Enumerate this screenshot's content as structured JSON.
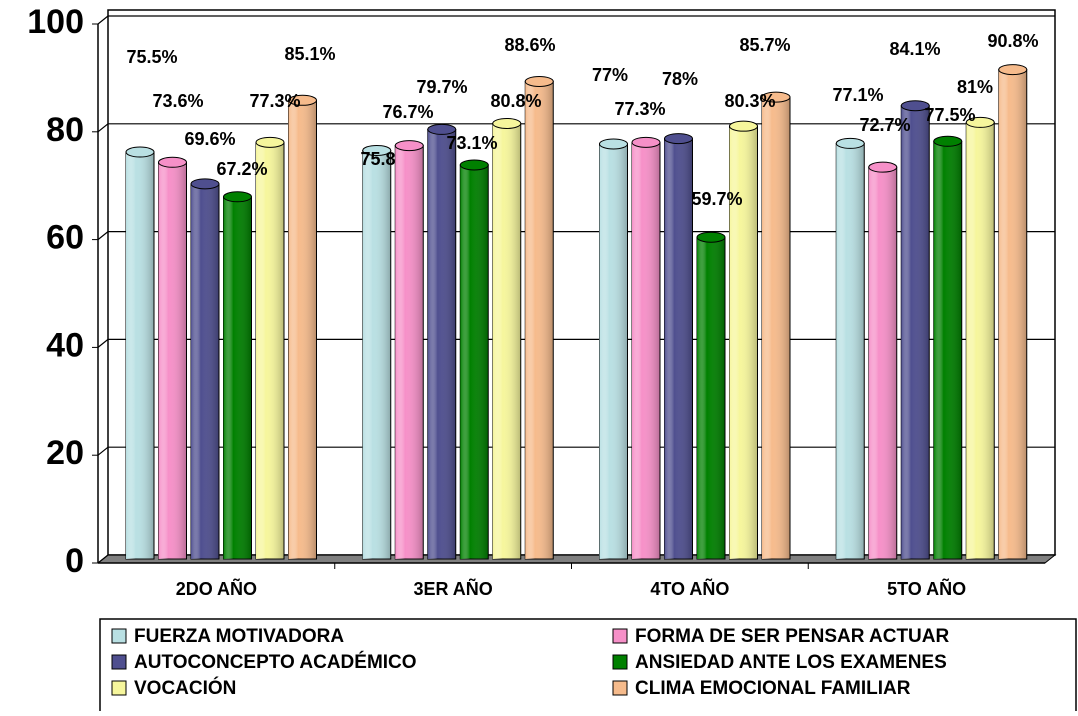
{
  "chart_data": {
    "type": "bar",
    "categories": [
      "2DO AÑO",
      "3ER AÑO",
      "4TO AÑO",
      "5TO AÑO"
    ],
    "series": [
      {
        "name": "FUERZA MOTIVADORA",
        "color": "#b9e0e3",
        "values": [
          75.5,
          75.8,
          77,
          77.1
        ],
        "value_labels": [
          "75.5%",
          "75.8",
          "77%",
          "77.1%"
        ]
      },
      {
        "name": "FORMA DE SER PENSAR ACTUAR",
        "color": "#f690c8",
        "values": [
          73.6,
          76.7,
          77.3,
          72.7
        ],
        "value_labels": [
          "73.6%",
          "76.7%",
          "77.3%",
          "72.7%"
        ]
      },
      {
        "name": "AUTOCONCEPTO ACADÉMICO",
        "color": "#4f4f8f",
        "values": [
          69.6,
          79.7,
          78,
          84.1
        ],
        "value_labels": [
          "69.6%",
          "79.7%",
          "78%",
          "84.1%"
        ]
      },
      {
        "name": "ANSIEDAD ANTE LOS EXAMENES",
        "color": "#008000",
        "values": [
          67.2,
          73.1,
          59.7,
          77.5
        ],
        "value_labels": [
          "67.2%",
          "73.1%",
          "59.7%",
          "77.5%"
        ]
      },
      {
        "name": "VOCACIÓN",
        "color": "#f6f69c",
        "values": [
          77.3,
          80.8,
          80.3,
          81
        ],
        "value_labels": [
          "77.3%",
          "80.8%",
          "80.3%",
          "81%"
        ]
      },
      {
        "name": "CLIMA EMOCIONAL FAMILIAR",
        "color": "#f6bb8c",
        "values": [
          85.1,
          88.6,
          85.7,
          90.8
        ],
        "value_labels": [
          "85.1%",
          "88.6%",
          "85.7%",
          "90.8%"
        ]
      }
    ],
    "ylim": [
      0,
      100
    ],
    "yticks": [
      0,
      20,
      40,
      60,
      80,
      100
    ],
    "grid": true,
    "legend": "bottom"
  }
}
